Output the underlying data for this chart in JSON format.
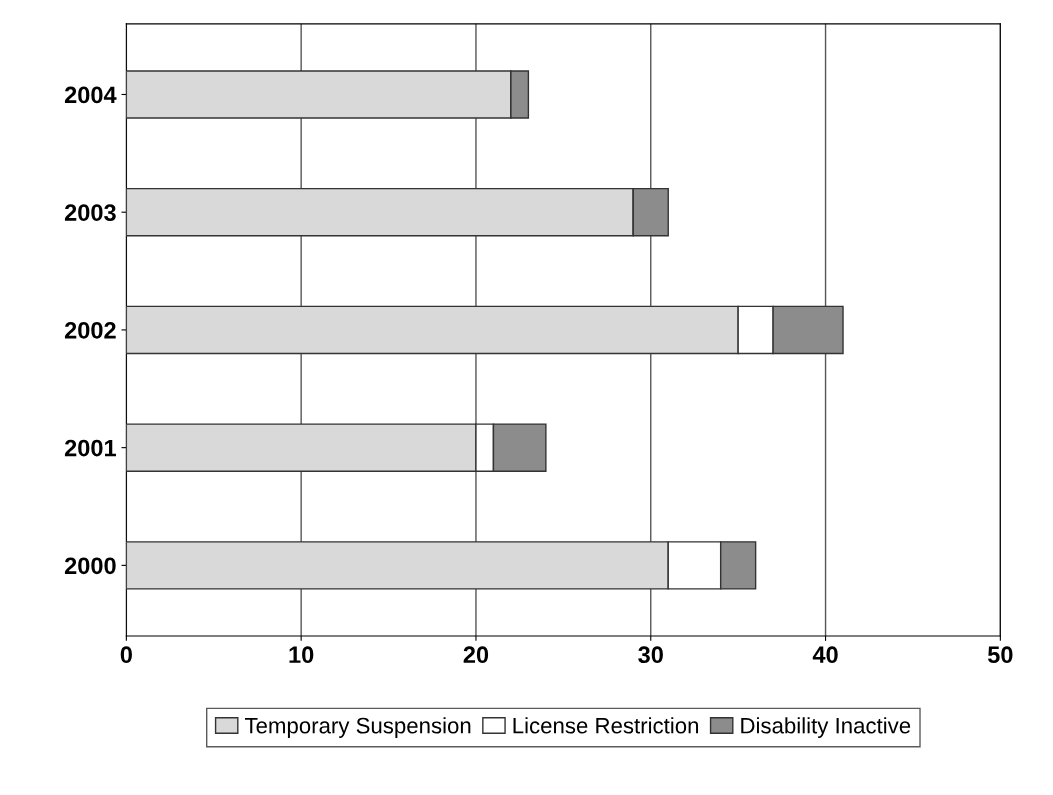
{
  "chart_data": {
    "type": "bar",
    "orientation": "horizontal",
    "stacked": true,
    "categories": [
      "2004",
      "2003",
      "2002",
      "2001",
      "2000"
    ],
    "series": [
      {
        "name": "Temporary Suspension",
        "color": "#d9d9d9",
        "values": [
          22,
          29,
          35,
          20,
          31
        ]
      },
      {
        "name": "License Restriction",
        "color": "#ffffff",
        "values": [
          0,
          0,
          2,
          1,
          3
        ]
      },
      {
        "name": "Disability Inactive",
        "color": "#8c8c8c",
        "values": [
          1,
          2,
          4,
          3,
          2
        ]
      }
    ],
    "xlim": [
      0,
      50
    ],
    "xticks": [
      0,
      10,
      20,
      30,
      40,
      50
    ],
    "grid": "x",
    "legend": "bottom"
  }
}
